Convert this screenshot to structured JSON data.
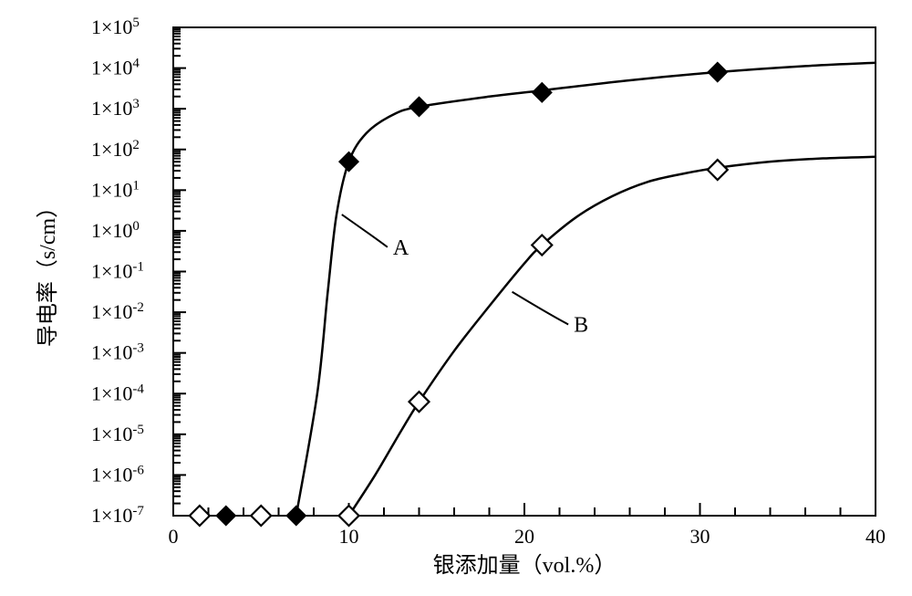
{
  "chart": {
    "type": "scatter-log",
    "background_color": "#ffffff",
    "line_color": "#000000",
    "xlabel": "银添加量（vol.%）",
    "ylabel": "导电率（s/cm）",
    "xlim": [
      0,
      40
    ],
    "xtick_step": 10,
    "xticks": [
      0,
      10,
      20,
      30,
      40
    ],
    "xminor_step": 2,
    "ylim_exp": [
      -7,
      5
    ],
    "yticks_exp": [
      -7,
      -6,
      -5,
      -4,
      -3,
      -2,
      -1,
      0,
      1,
      2,
      3,
      4,
      5
    ],
    "seriesA": {
      "label": "A",
      "marker": "diamond-filled",
      "marker_fill": "#000000",
      "marker_stroke": "#000000",
      "marker_size": 20,
      "points": [
        {
          "x": 3,
          "y_exp": -7.0
        },
        {
          "x": 7,
          "y_exp": -7.0
        },
        {
          "x": 10,
          "y_exp": 1.7
        },
        {
          "x": 14,
          "y_exp": 3.05
        },
        {
          "x": 21,
          "y_exp": 3.4
        },
        {
          "x": 31,
          "y_exp": 3.9
        }
      ],
      "curve": [
        {
          "x": 7,
          "y_exp": -7.0
        },
        {
          "x": 8.2,
          "y_exp": -4.0
        },
        {
          "x": 8.8,
          "y_exp": -1.5
        },
        {
          "x": 9.3,
          "y_exp": 0.4
        },
        {
          "x": 10,
          "y_exp": 1.7
        },
        {
          "x": 11,
          "y_exp": 2.4
        },
        {
          "x": 12.5,
          "y_exp": 2.85
        },
        {
          "x": 14,
          "y_exp": 3.05
        },
        {
          "x": 18,
          "y_exp": 3.3
        },
        {
          "x": 21,
          "y_exp": 3.45
        },
        {
          "x": 26,
          "y_exp": 3.7
        },
        {
          "x": 31,
          "y_exp": 3.9
        },
        {
          "x": 36,
          "y_exp": 4.05
        },
        {
          "x": 40,
          "y_exp": 4.13
        }
      ],
      "annot_from": {
        "x": 12.2,
        "y_exp": -0.4
      },
      "annot_to": {
        "x": 9.6,
        "y_exp": 0.4
      }
    },
    "seriesB": {
      "label": "B",
      "marker": "diamond-open",
      "marker_fill": "#ffffff",
      "marker_stroke": "#000000",
      "marker_size": 22,
      "points": [
        {
          "x": 1.5,
          "y_exp": -7.0
        },
        {
          "x": 5,
          "y_exp": -7.0
        },
        {
          "x": 10,
          "y_exp": -7.0
        },
        {
          "x": 14,
          "y_exp": -4.2
        },
        {
          "x": 21,
          "y_exp": -0.35
        },
        {
          "x": 31,
          "y_exp": 1.5
        }
      ],
      "curve": [
        {
          "x": 10,
          "y_exp": -7.0
        },
        {
          "x": 11.5,
          "y_exp": -6.0
        },
        {
          "x": 13,
          "y_exp": -4.9
        },
        {
          "x": 14,
          "y_exp": -4.2
        },
        {
          "x": 16,
          "y_exp": -2.95
        },
        {
          "x": 18,
          "y_exp": -1.85
        },
        {
          "x": 20,
          "y_exp": -0.8
        },
        {
          "x": 21,
          "y_exp": -0.35
        },
        {
          "x": 23,
          "y_exp": 0.35
        },
        {
          "x": 25,
          "y_exp": 0.85
        },
        {
          "x": 27,
          "y_exp": 1.2
        },
        {
          "x": 29,
          "y_exp": 1.4
        },
        {
          "x": 31,
          "y_exp": 1.55
        },
        {
          "x": 34,
          "y_exp": 1.7
        },
        {
          "x": 37,
          "y_exp": 1.78
        },
        {
          "x": 40,
          "y_exp": 1.82
        }
      ],
      "annot_from": {
        "x": 22.5,
        "y_exp": -2.3
      },
      "annot_to": {
        "x": 19.3,
        "y_exp": -1.5
      }
    }
  }
}
